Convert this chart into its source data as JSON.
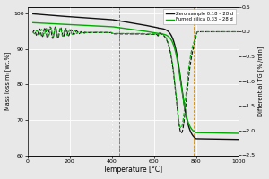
{
  "title": "",
  "xlabel": "Temperature [°C]",
  "ylabel_left": "Mass loss mₗ [wt.%]",
  "ylabel_right": "Differential TG [% /min]",
  "xlim": [
    0,
    1000
  ],
  "ylim_left": [
    60,
    102
  ],
  "ylim_right": [
    -2.5,
    0.5
  ],
  "legend": [
    "Zero sample 0.18 – 28 d",
    "Fumed silica 0.33 – 28 d"
  ],
  "tg_color_zero": "#111111",
  "tg_color_fumed": "#00aa00",
  "dtg_color_zero": "#111111",
  "dtg_color_fumed": "#00aa00",
  "vline_red1": 400,
  "vline_red2": 435,
  "vline_orange": 790,
  "vline_red1_color": "#cc2200",
  "vline_red2_color": "#cc5500",
  "vline_orange_color": "#cc8800",
  "background": "#e8e8e8",
  "grid_color": "#ffffff"
}
